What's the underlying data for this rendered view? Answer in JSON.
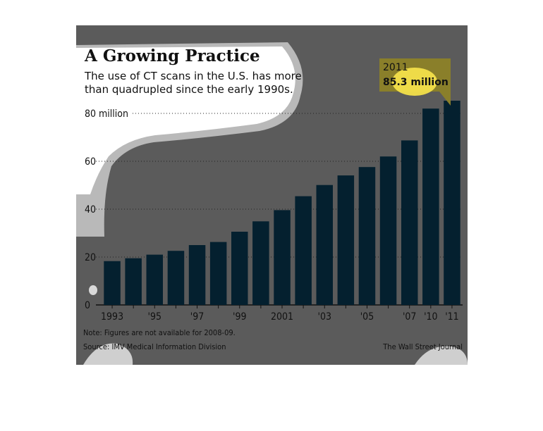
{
  "title": "A Growing Practice",
  "subtitle_lines": [
    "The use of CT scans in the U.S. has more",
    "than quadrupled since the early 1990s."
  ],
  "note": "Note: Figures are not available for 2008-09.",
  "source": "Source: IMV Medical Information Division",
  "credit": "The Wall Street Journal",
  "annotation": {
    "year": "2011",
    "value": "85.3 million"
  },
  "colors": {
    "bar": "#04202f",
    "background": "#5b5b5b",
    "highlight": "#f3e04a",
    "annotation_box": "#8a7f2a"
  },
  "chart_data": {
    "type": "bar",
    "title": "A Growing Practice",
    "categories": [
      "1993",
      "1994",
      "1995",
      "1996",
      "1997",
      "1998",
      "1999",
      "2000",
      "2001",
      "2002",
      "2003",
      "2004",
      "2005",
      "2006",
      "2007",
      "2010",
      "2011"
    ],
    "values": [
      18.3,
      19.5,
      21.0,
      22.6,
      25.0,
      26.3,
      30.6,
      34.9,
      39.6,
      45.4,
      50.1,
      54.1,
      57.6,
      62.0,
      68.7,
      82.0,
      85.3
    ],
    "tick_labels": [
      "1993",
      "",
      "'95",
      "",
      "'97",
      "",
      "'99",
      "",
      "2001",
      "",
      "'03",
      "",
      "'05",
      "",
      "'07",
      "'10",
      "'11"
    ],
    "y_ticks": [
      0,
      20,
      40,
      60,
      80
    ],
    "y_tick_labels": [
      "0",
      "20",
      "40",
      "60",
      "80 million"
    ],
    "ylim": [
      0,
      90
    ],
    "xlabel": "",
    "ylabel": "",
    "grid": true
  }
}
